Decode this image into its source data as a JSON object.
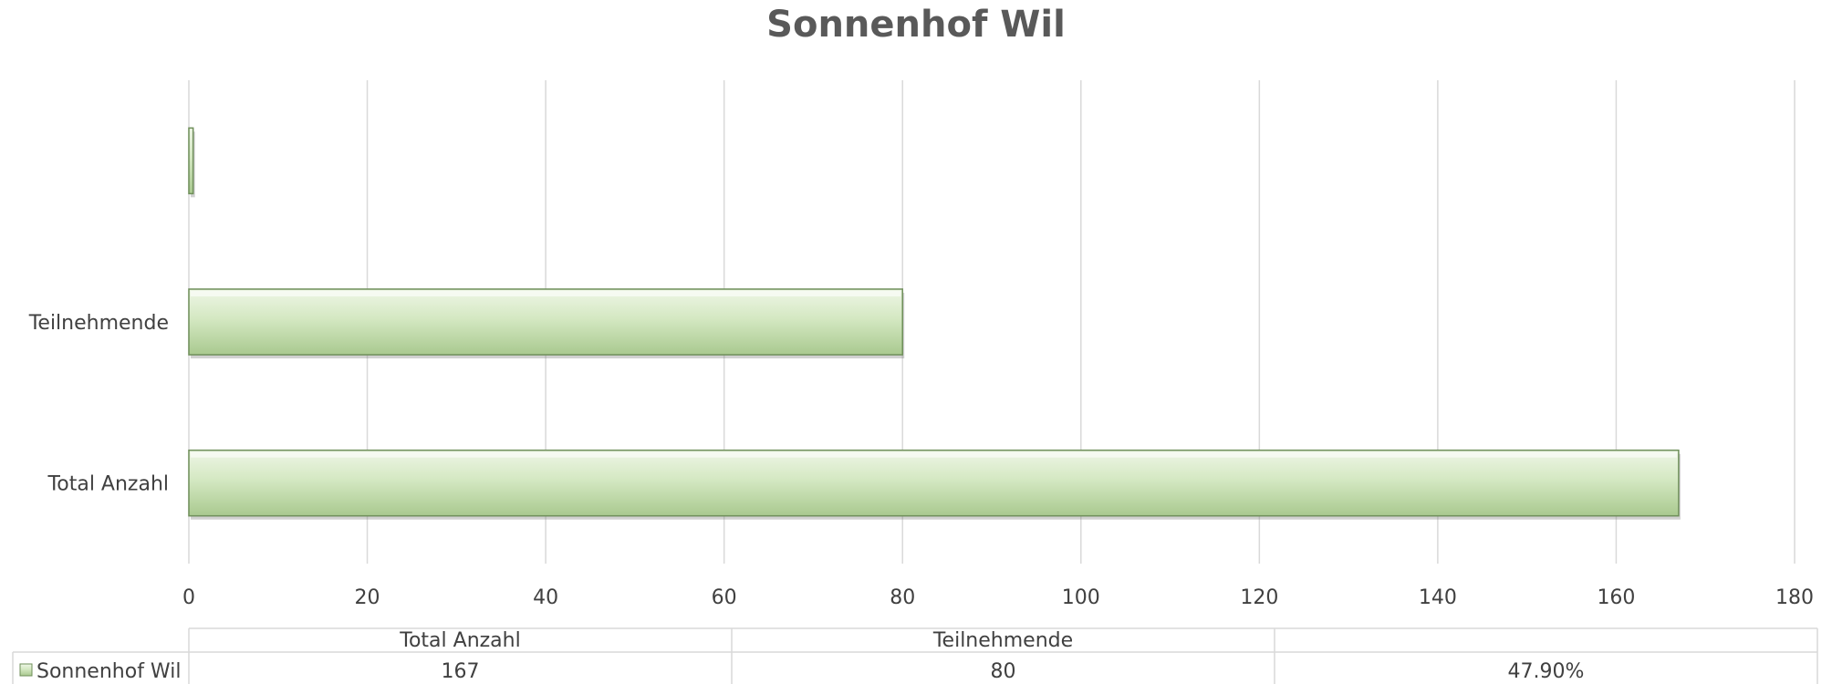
{
  "chart_data": {
    "type": "bar",
    "orientation": "horizontal",
    "title": "Sonnenhof Wil",
    "categories": [
      "Total Anzahl",
      "Teilnehmende",
      ""
    ],
    "series": [
      {
        "name": "Sonnenhof Wil",
        "values": [
          167,
          80,
          0.479
        ],
        "color": "#c6e0b4"
      }
    ],
    "xlim": [
      0,
      180
    ],
    "xticks": [
      0,
      20,
      40,
      60,
      80,
      100,
      120,
      140,
      160,
      180
    ],
    "grid": true,
    "legend": "data-table",
    "data_table": {
      "headers": [
        "Total Anzahl",
        "Teilnehmende",
        ""
      ],
      "row_label": "Sonnenhof Wil",
      "values": [
        "167",
        "80",
        "47.90%"
      ]
    }
  }
}
